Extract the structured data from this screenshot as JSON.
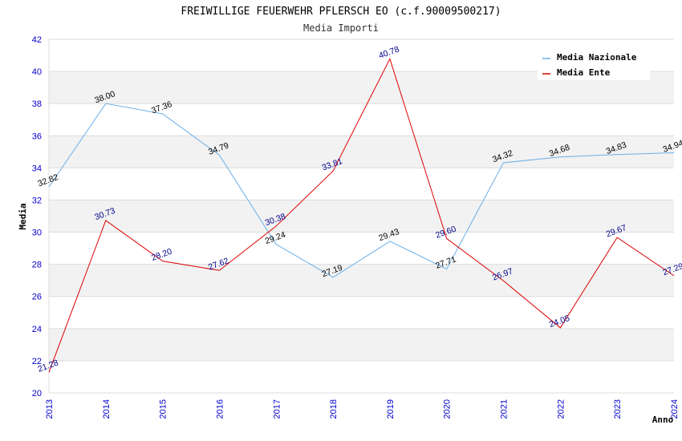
{
  "chart_data": {
    "type": "line",
    "title": "FREIWILLIGE FEUERWEHR PFLERSCH EO (c.f.90009500217)",
    "subtitle": "Media Importi",
    "xlabel": "Anno",
    "ylabel": "Media",
    "x": [
      "2013",
      "2014",
      "2015",
      "2016",
      "2017",
      "2018",
      "2019",
      "2020",
      "2021",
      "2022",
      "2023",
      "2024"
    ],
    "ylim": [
      20,
      42
    ],
    "yticks": [
      "20",
      "22",
      "24",
      "26",
      "28",
      "30",
      "32",
      "34",
      "36",
      "38",
      "40",
      "42"
    ],
    "grid": true,
    "legend_position": "top-right",
    "series": [
      {
        "name": "Media Nazionale",
        "color": "#6aaee8",
        "label_color": "#000000",
        "values": [
          32.82,
          38.0,
          37.36,
          34.79,
          29.24,
          27.19,
          29.43,
          27.71,
          34.32,
          34.68,
          34.83,
          34.94
        ],
        "labels": [
          "32.82",
          "38.00",
          "37.36",
          "34.79",
          "29.24",
          "27.19",
          "29.43",
          "27.71",
          "34.32",
          "34.68",
          "34.83",
          "34.94"
        ]
      },
      {
        "name": "Media Ente",
        "color": "#dd0000",
        "label_color": "#00008b",
        "values": [
          21.28,
          30.73,
          28.2,
          27.62,
          30.38,
          33.81,
          40.78,
          29.6,
          26.97,
          24.05,
          29.67,
          27.29
        ],
        "labels": [
          "21.28",
          "30.73",
          "28.20",
          "27.62",
          "30.38",
          "33.81",
          "40.78",
          "29.60",
          "26.97",
          "24.05",
          "29.67",
          "27.29"
        ]
      }
    ]
  }
}
